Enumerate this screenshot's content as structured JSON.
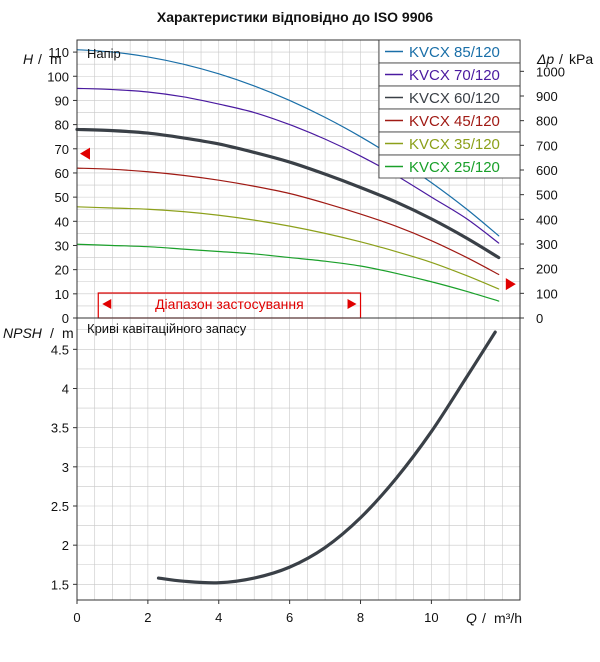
{
  "title": "Характеристики відповідно до ISO 9906",
  "colors": {
    "grid": "#c8c8c8",
    "axis": "#333333",
    "range": "#e00000",
    "npsh": "#3a4047"
  },
  "chart_data": [
    {
      "type": "line",
      "panel": "head",
      "panel_label": "Напір",
      "ylabel": "H",
      "ylabel_unit": "m",
      "y2label": "Δp",
      "y2label_unit": "kPa",
      "xlim": [
        0,
        12.5
      ],
      "ylim": [
        0,
        115
      ],
      "y2lim": [
        0,
        1127
      ],
      "yticks": [
        0,
        10,
        20,
        30,
        40,
        50,
        60,
        70,
        80,
        90,
        100,
        110
      ],
      "y2ticks": [
        0,
        100,
        200,
        300,
        400,
        500,
        600,
        700,
        800,
        900,
        1000
      ],
      "grid": true,
      "legend_position": "top-right",
      "range": {
        "label": "Діапазон застосування",
        "x": [
          0.6,
          8.0
        ]
      },
      "markers": [
        {
          "side": "left",
          "y": 68,
          "direction": "left"
        },
        {
          "side": "right",
          "y": 14,
          "direction": "right"
        }
      ],
      "series": [
        {
          "name": "KVCX 85/120",
          "color": "#1a6fa8",
          "width": 1.2,
          "x": [
            0,
            1,
            2,
            3,
            4,
            5,
            6,
            7,
            8,
            9,
            10,
            11,
            11.9
          ],
          "y": [
            111,
            110,
            108,
            105,
            101,
            96,
            90,
            83,
            75,
            66,
            56,
            45,
            34
          ]
        },
        {
          "name": "KVCX 70/120",
          "color": "#4a1aa0",
          "width": 1.2,
          "x": [
            0,
            1,
            2,
            3,
            4,
            5,
            6,
            7,
            8,
            9,
            10,
            11,
            11.9
          ],
          "y": [
            95,
            94.5,
            93.5,
            91.5,
            88.5,
            85,
            80,
            74,
            67,
            59,
            50,
            41,
            31
          ]
        },
        {
          "name": "KVCX 60/120",
          "color": "#3a4047",
          "width": 3.2,
          "x": [
            0,
            1,
            2,
            3,
            4,
            5,
            6,
            7,
            8,
            9,
            10,
            11,
            11.9
          ],
          "y": [
            78,
            77.5,
            76.5,
            74.5,
            72,
            68.5,
            64.5,
            59.5,
            54,
            48,
            41,
            33,
            25
          ]
        },
        {
          "name": "KVCX 45/120",
          "color": "#a01a14",
          "width": 1.2,
          "x": [
            0,
            1,
            2,
            3,
            4,
            5,
            6,
            7,
            8,
            9,
            10,
            11,
            11.9
          ],
          "y": [
            62,
            61.5,
            60.5,
            59,
            57,
            54.5,
            51.5,
            47.5,
            43,
            38,
            32,
            25,
            18
          ]
        },
        {
          "name": "KVCX 35/120",
          "color": "#8ca01a",
          "width": 1.2,
          "x": [
            0,
            1,
            2,
            3,
            4,
            5,
            6,
            7,
            8,
            9,
            10,
            11,
            11.9
          ],
          "y": [
            46,
            45.5,
            45,
            44,
            42.5,
            40.5,
            38,
            35,
            31.5,
            27.5,
            23,
            17.5,
            12
          ]
        },
        {
          "name": "KVCX 25/120",
          "color": "#1aa02a",
          "width": 1.2,
          "x": [
            0,
            1,
            2,
            3,
            4,
            5,
            6,
            7,
            8,
            9,
            10,
            11,
            11.9
          ],
          "y": [
            30.5,
            30,
            29.5,
            28.5,
            27.5,
            26.5,
            25,
            23.5,
            21.5,
            18.5,
            15,
            11,
            7
          ]
        }
      ]
    },
    {
      "type": "line",
      "panel": "npsh",
      "panel_label": "Криві кавітаційного запасу",
      "ylabel": "NPSH",
      "ylabel_unit": "m",
      "xlabel": "Q",
      "xlabel_unit": "m³/h",
      "xlim": [
        0,
        12.5
      ],
      "ylim": [
        1.3,
        4.9
      ],
      "xticks": [
        0,
        2,
        4,
        6,
        8,
        10
      ],
      "yticks": [
        1.5,
        2,
        2.5,
        3,
        3.5,
        4,
        4.5
      ],
      "ytick_labels": [
        "1.5",
        "2",
        "2.5",
        "3",
        "3.5",
        "4",
        "4.5"
      ],
      "grid": true,
      "series": [
        {
          "color": "#3a4047",
          "width": 3.2,
          "x": [
            2.3,
            3,
            4,
            5,
            6,
            7,
            8,
            9,
            10,
            11,
            11.8
          ],
          "y": [
            1.58,
            1.54,
            1.52,
            1.58,
            1.72,
            1.97,
            2.35,
            2.85,
            3.45,
            4.15,
            4.72
          ]
        }
      ]
    }
  ]
}
